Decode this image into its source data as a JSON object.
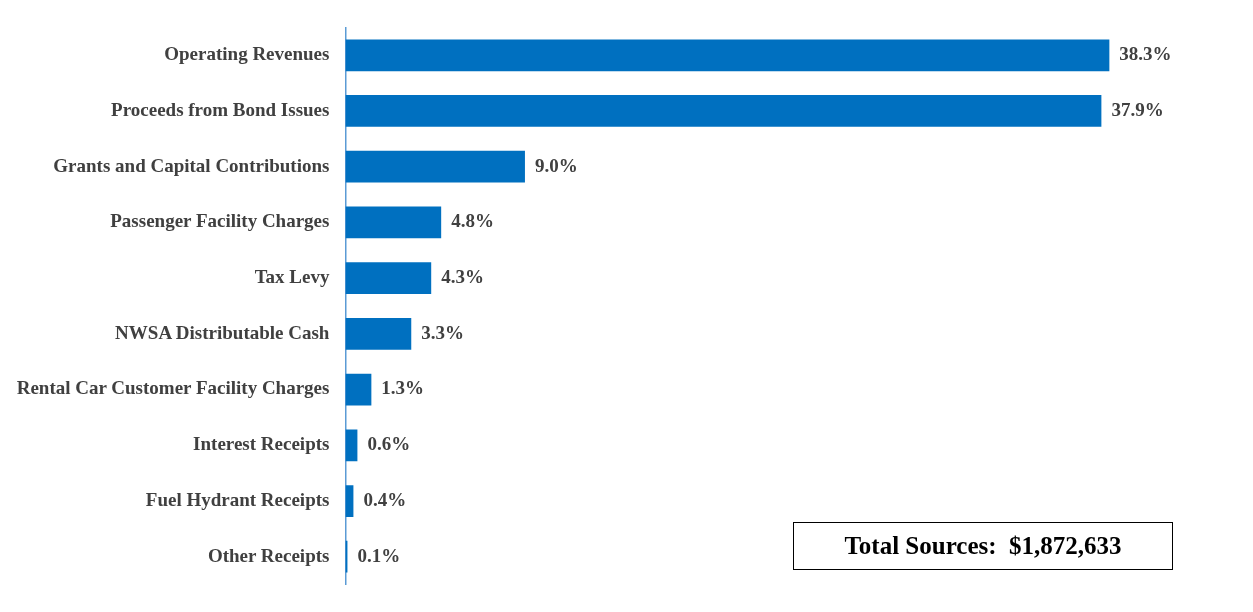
{
  "chart_data": {
    "type": "bar",
    "orientation": "horizontal",
    "categories": [
      "Operating Revenues",
      "Proceeds from Bond Issues",
      "Grants and Capital Contributions",
      "Passenger Facility Charges",
      "Tax Levy",
      "NWSA Distributable Cash",
      "Rental Car Customer Facility Charges",
      "Interest Receipts",
      "Fuel Hydrant Receipts",
      "Other Receipts"
    ],
    "values": [
      38.3,
      37.9,
      9.0,
      4.8,
      4.3,
      3.3,
      1.3,
      0.6,
      0.4,
      0.1
    ],
    "value_labels": [
      "38.3%",
      "37.9%",
      "9.0%",
      "4.8%",
      "4.3%",
      "3.3%",
      "1.3%",
      "0.6%",
      "0.4%",
      "0.1%"
    ],
    "color": "#0070c0",
    "legend": false,
    "annotations": [
      "Total Sources:  $1,872,633"
    ]
  }
}
